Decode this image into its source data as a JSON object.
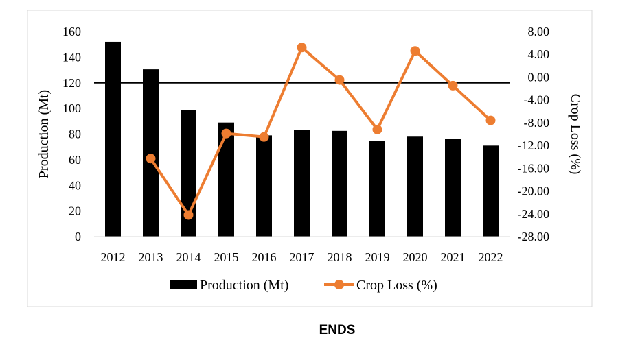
{
  "caption": "ENDS",
  "chart_data": {
    "type": "bar+line",
    "categories": [
      "2012",
      "2013",
      "2014",
      "2015",
      "2016",
      "2017",
      "2018",
      "2019",
      "2020",
      "2021",
      "2022"
    ],
    "series": [
      {
        "name": "Production (Mt)",
        "type": "bar",
        "axis": "left",
        "color": "#000000",
        "values": [
          152,
          130.5,
          98.5,
          89,
          79,
          83,
          82.5,
          74.5,
          78,
          76.5,
          71
        ]
      },
      {
        "name": "Crop Loss (%)",
        "type": "line",
        "axis": "right",
        "color": "#ED7D31",
        "values": [
          null,
          -14.3,
          -24.2,
          -9.9,
          -10.5,
          5.2,
          -0.5,
          -9.2,
          4.6,
          -1.5,
          -7.6
        ]
      }
    ],
    "ylabel": "Production (Mt)",
    "y2label": "Crop Loss (%)",
    "ylim": [
      0,
      160
    ],
    "y2lim": [
      -28,
      8
    ],
    "yticks": [
      "0",
      "20",
      "40",
      "60",
      "80",
      "100",
      "120",
      "140",
      "160"
    ],
    "y2ticks": [
      "8.00",
      "4.00",
      "0.00",
      "-4.00",
      "-8.00",
      "-12.00",
      "-16.00",
      "-20.00",
      "-24.00",
      "-28.00"
    ],
    "reference_line": 120,
    "legend_position": "bottom",
    "grid": false
  }
}
